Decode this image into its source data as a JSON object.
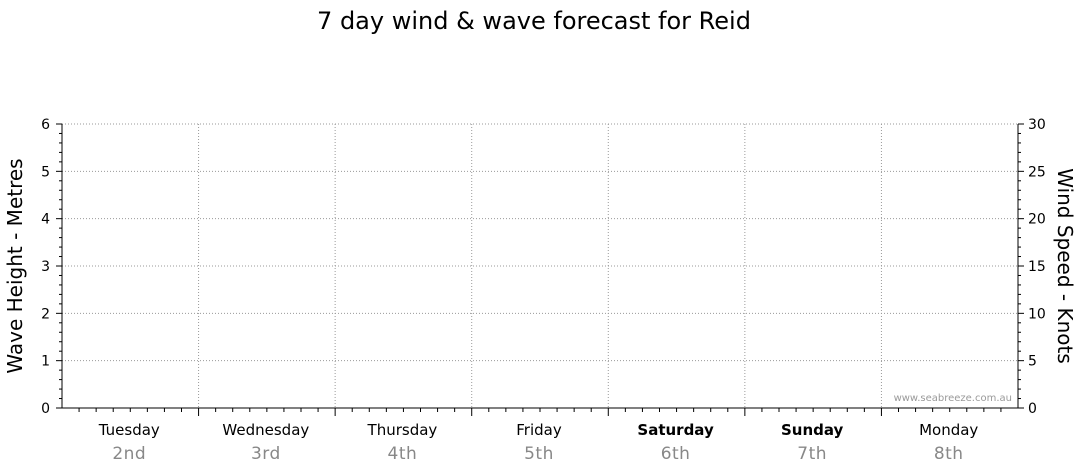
{
  "chart_data": {
    "type": "line",
    "title": "7 day wind & wave forecast for Reid",
    "ylabel": "Wave Height - Metres",
    "ylabel_right": "Wind Speed - Knots",
    "ylim": [
      0,
      6
    ],
    "ylim_right": [
      0,
      30
    ],
    "yticks": [
      "0",
      "1",
      "2",
      "3",
      "4",
      "5",
      "6"
    ],
    "yticks_right": [
      "0",
      "5",
      "10",
      "15",
      "20",
      "25",
      "30"
    ],
    "days": [
      {
        "name": "Tuesday",
        "date": "2nd",
        "weekend": false
      },
      {
        "name": "Wednesday",
        "date": "3rd",
        "weekend": false
      },
      {
        "name": "Thursday",
        "date": "4th",
        "weekend": false
      },
      {
        "name": "Friday",
        "date": "5th",
        "weekend": false
      },
      {
        "name": "Saturday",
        "date": "6th",
        "weekend": true
      },
      {
        "name": "Sunday",
        "date": "7th",
        "weekend": true
      },
      {
        "name": "Monday",
        "date": "8th",
        "weekend": false
      }
    ],
    "series": [],
    "grid": true,
    "watermark": "www.seabreeze.com.au"
  }
}
